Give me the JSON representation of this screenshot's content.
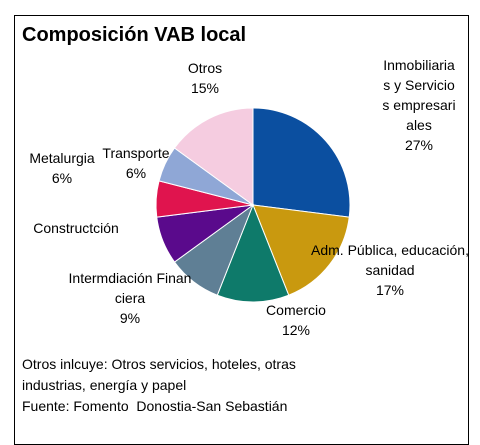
{
  "chart_data": {
    "type": "pie",
    "title": "Composición VAB local",
    "categories": [
      "Inmobiliarias y Servicios empresariales",
      "Adm. Pública, educación, sanidad",
      "Comercio",
      "Intermdiación Financiera",
      "Constructción",
      "Metalurgia",
      "Transporte",
      "Otros"
    ],
    "values": [
      27,
      17,
      12,
      9,
      8,
      6,
      6,
      15
    ],
    "value_labels": [
      "27%",
      "17%",
      "12%",
      "9%",
      null,
      "6%",
      "6%",
      "15%"
    ],
    "colors": [
      "#0b4fa0",
      "#c9990f",
      "#0e7a6a",
      "#5f7f95",
      "#5a0a8c",
      "#e0144e",
      "#8fa7d6",
      "#f5cce0"
    ],
    "notes": [
      "Otros inlcuye: Otros servicios, hoteles, otras industrias, energía y papel",
      "Fuente: Fomento  Donostia-San Sebastián"
    ]
  }
}
